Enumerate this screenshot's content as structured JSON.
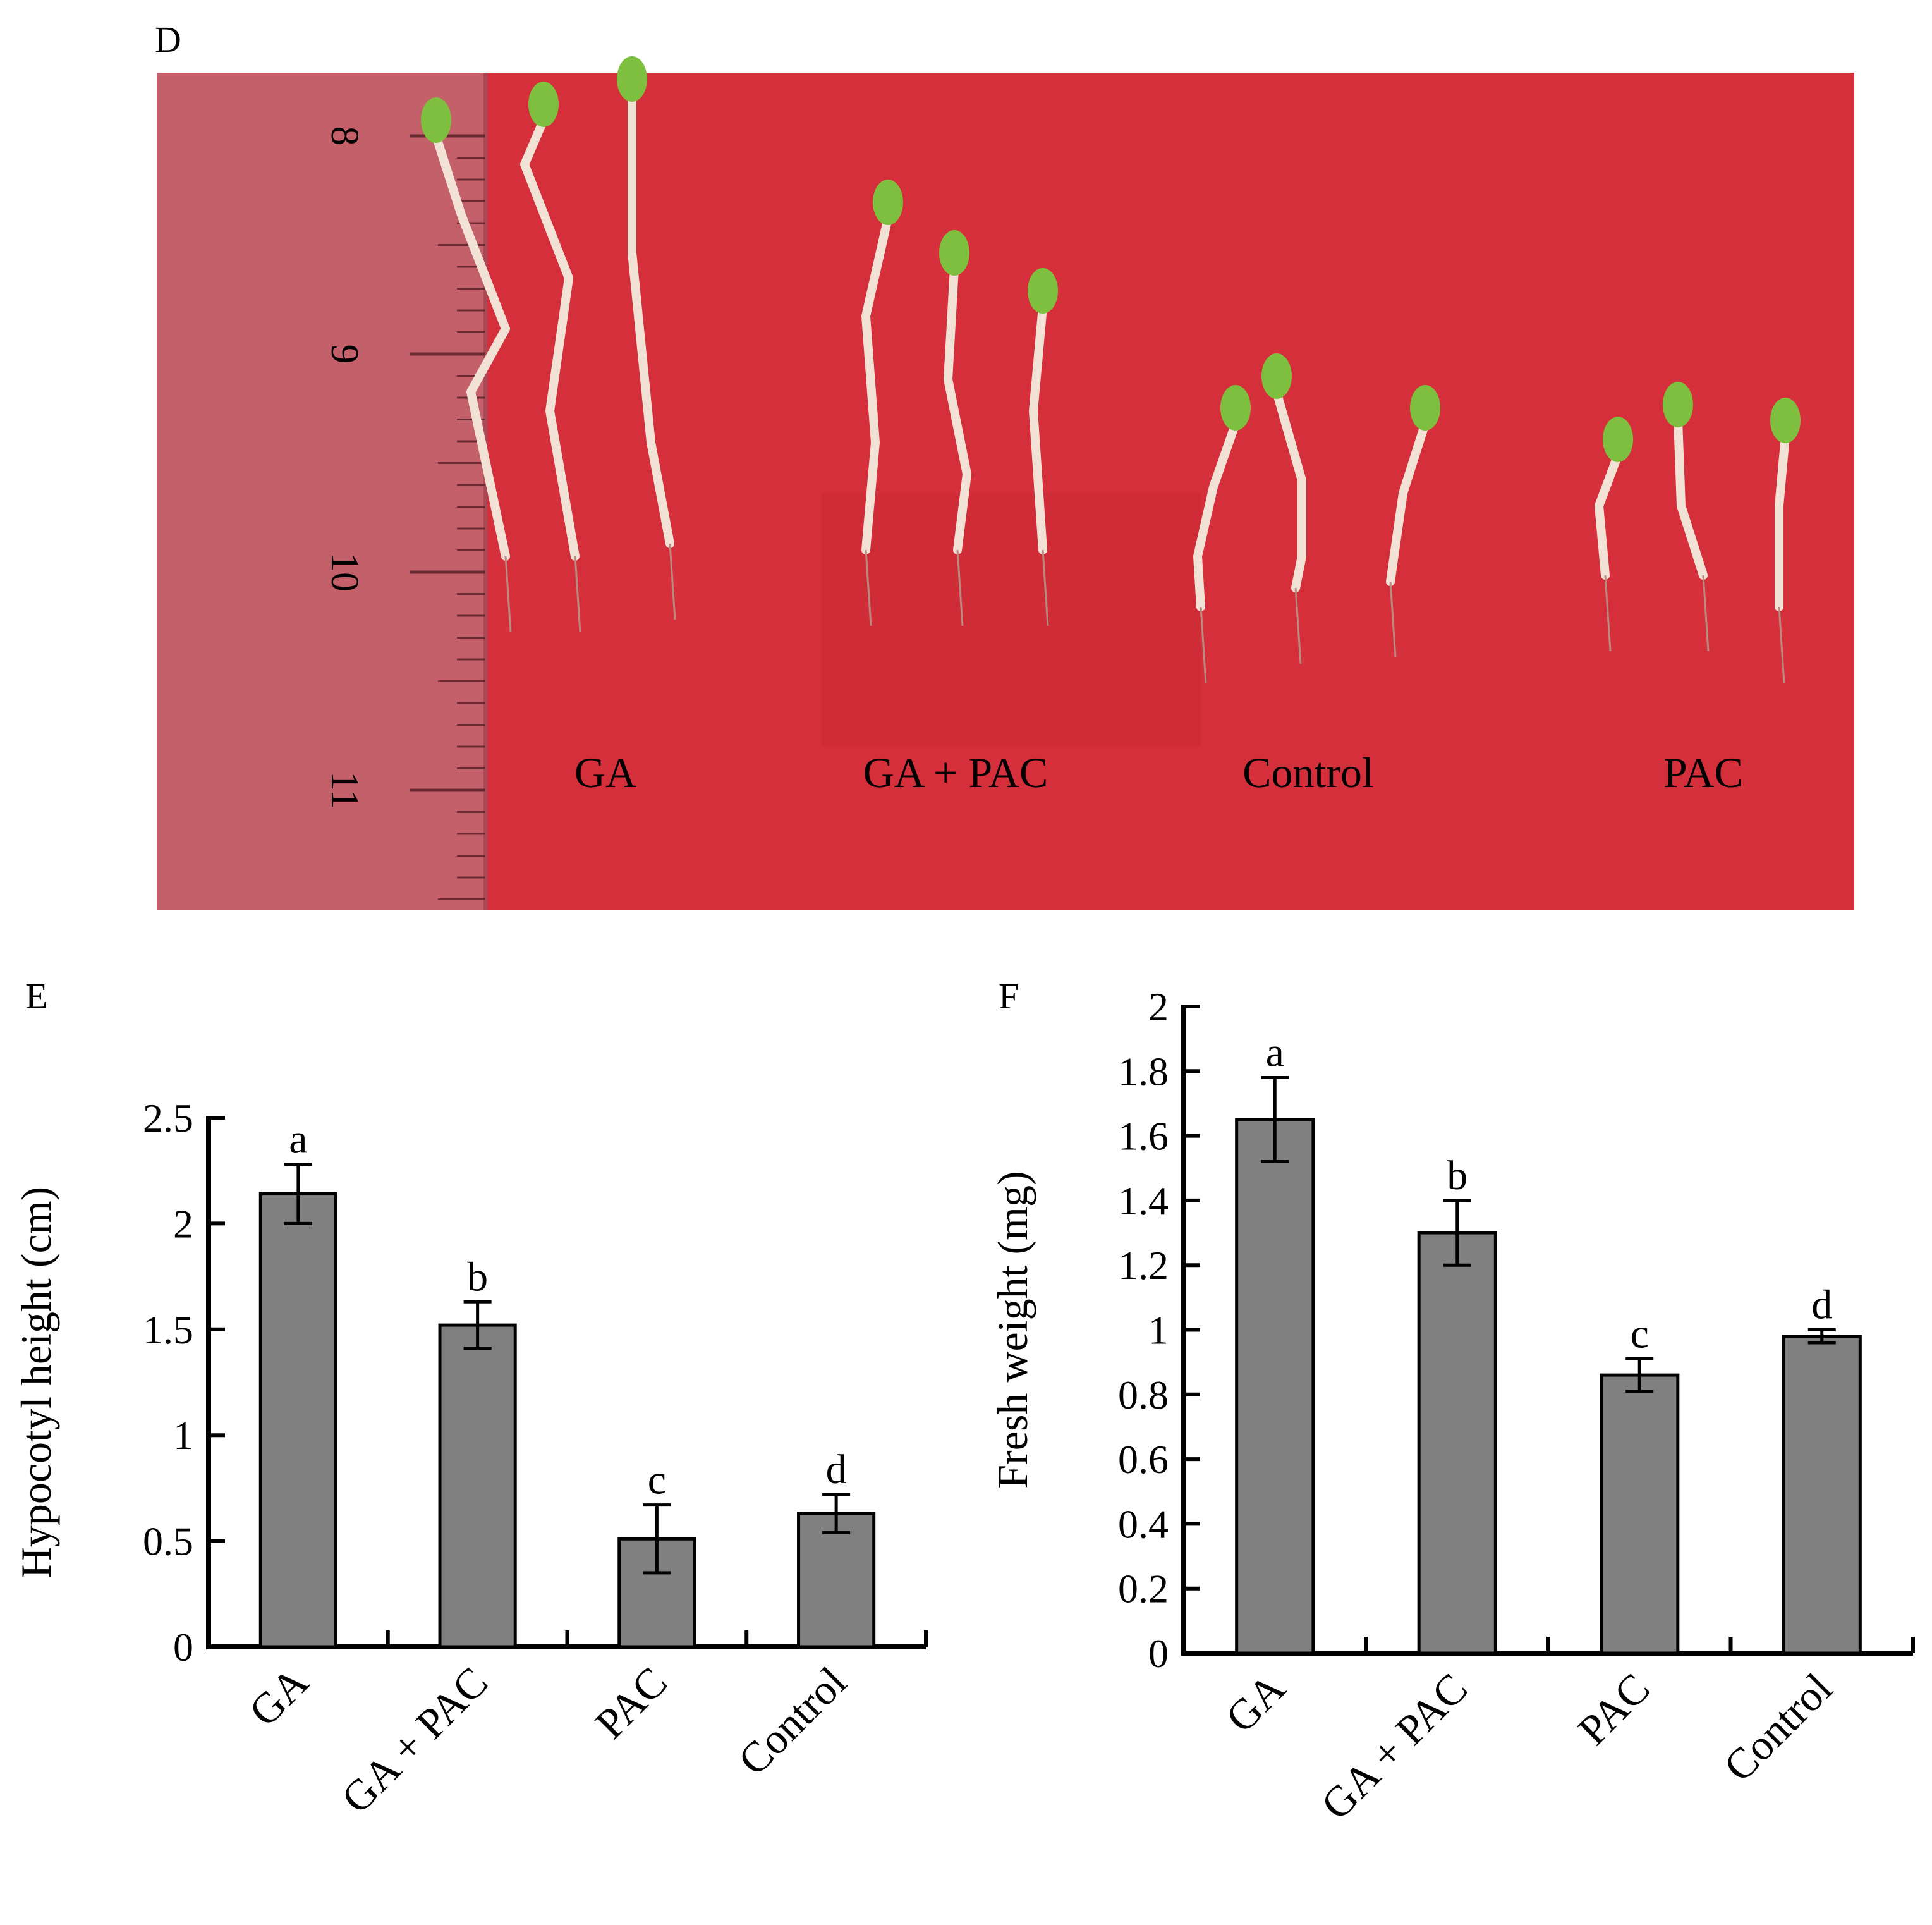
{
  "panels": {
    "D": {
      "label": "D",
      "treatment_labels": [
        "GA",
        "GA + PAC",
        "Control",
        "PAC"
      ],
      "ruler_labels": [
        "8",
        "9",
        "10",
        "11"
      ],
      "colors": {
        "background": "#d42f3a",
        "ruler": "#c4606a",
        "stem": "#f2e2d6",
        "leaf": "#7fbf3f"
      }
    },
    "E": {
      "label": "E"
    },
    "F": {
      "label": "F"
    }
  },
  "chart_data": [
    {
      "panel": "E",
      "type": "bar",
      "categories": [
        "GA",
        "GA + PAC",
        "PAC",
        "Control"
      ],
      "values": [
        2.14,
        1.52,
        0.51,
        0.63
      ],
      "errors": [
        0.14,
        0.11,
        0.16,
        0.09
      ],
      "significance": [
        "a",
        "b",
        "c",
        "d"
      ],
      "ylabel": "Hypocotyl height (cm)",
      "xlabel": "",
      "ylim": [
        0,
        2.5
      ],
      "yticks": [
        0,
        0.5,
        1,
        1.5,
        2,
        2.5
      ],
      "ytick_labels": [
        "0",
        "0.5",
        "1",
        "1.5",
        "2",
        "2.5"
      ],
      "bar_color": "#808080",
      "grid": false
    },
    {
      "panel": "F",
      "type": "bar",
      "categories": [
        "GA",
        "GA + PAC",
        "PAC",
        "Control"
      ],
      "values": [
        1.65,
        1.3,
        0.86,
        0.98
      ],
      "errors": [
        0.13,
        0.1,
        0.05,
        0.02
      ],
      "significance": [
        "a",
        "b",
        "c",
        "d"
      ],
      "ylabel": "Fresh weight (mg)",
      "xlabel": "",
      "ylim": [
        0,
        2
      ],
      "yticks": [
        0,
        0.2,
        0.4,
        0.6,
        0.8,
        1,
        1.2,
        1.4,
        1.6,
        1.8,
        2
      ],
      "ytick_labels": [
        "0",
        "0.2",
        "0.4",
        "0.6",
        "0.8",
        "1",
        "1.2",
        "1.4",
        "1.6",
        "1.8",
        "2"
      ],
      "bar_color": "#808080",
      "grid": false
    }
  ]
}
